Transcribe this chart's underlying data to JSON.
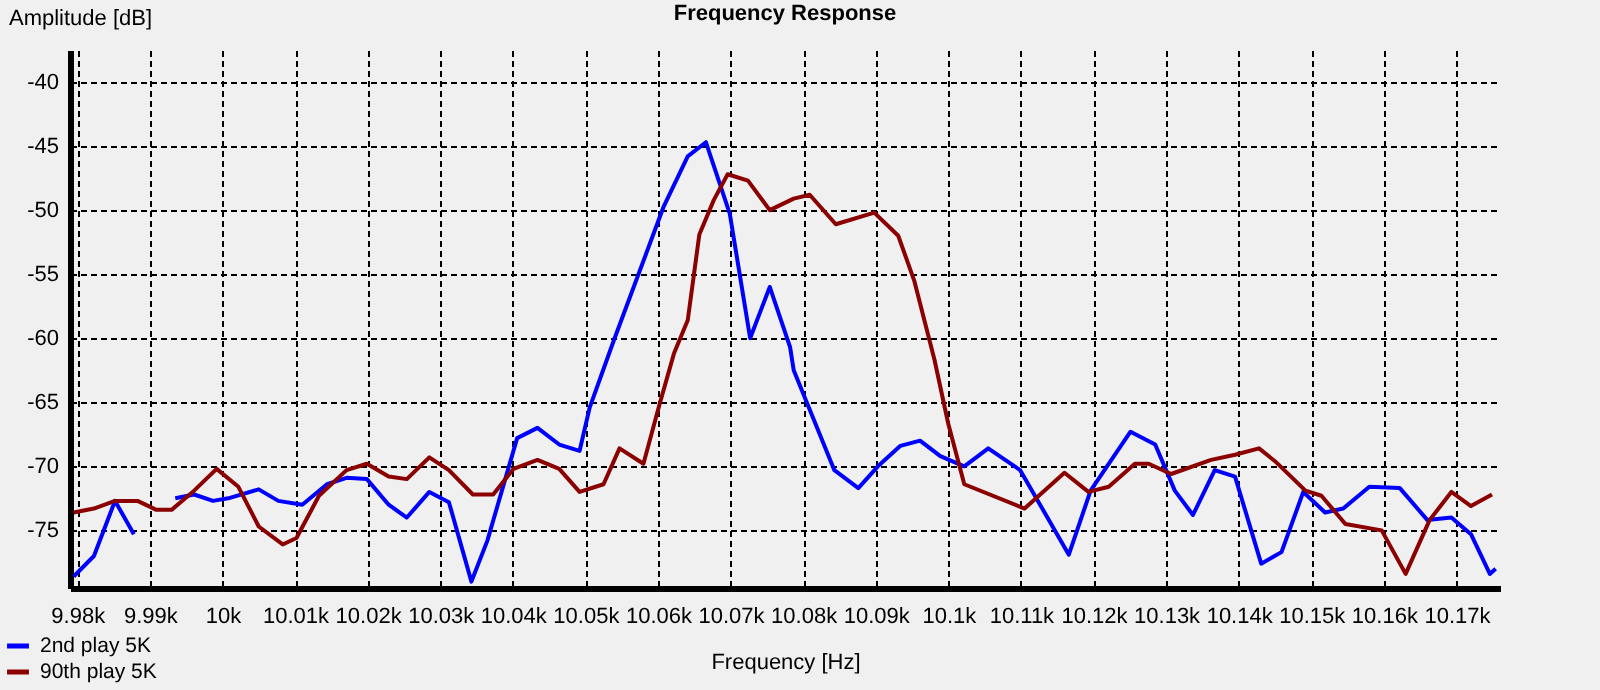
{
  "chart_data": {
    "type": "line",
    "title": "Frequency Response",
    "xlabel": "Frequency [Hz]",
    "ylabel": "Amplitude [dB]",
    "xlim": [
      9979,
      10176
    ],
    "ylim": [
      -79.5,
      -37.5
    ],
    "xticks": [
      {
        "value": 9980,
        "label": "9.98k"
      },
      {
        "value": 9990,
        "label": "9.99k"
      },
      {
        "value": 10000,
        "label": "10k"
      },
      {
        "value": 10010,
        "label": "10.01k"
      },
      {
        "value": 10020,
        "label": "10.02k"
      },
      {
        "value": 10030,
        "label": "10.03k"
      },
      {
        "value": 10040,
        "label": "10.04k"
      },
      {
        "value": 10050,
        "label": "10.05k"
      },
      {
        "value": 10060,
        "label": "10.06k"
      },
      {
        "value": 10070,
        "label": "10.07k"
      },
      {
        "value": 10080,
        "label": "10.08k"
      },
      {
        "value": 10090,
        "label": "10.09k"
      },
      {
        "value": 10100,
        "label": "10.1k"
      },
      {
        "value": 10110,
        "label": "10.11k"
      },
      {
        "value": 10120,
        "label": "10.12k"
      },
      {
        "value": 10130,
        "label": "10.13k"
      },
      {
        "value": 10140,
        "label": "10.14k"
      },
      {
        "value": 10150,
        "label": "10.15k"
      },
      {
        "value": 10160,
        "label": "10.16k"
      },
      {
        "value": 10170,
        "label": "10.17k"
      }
    ],
    "yticks": [
      -40,
      -45,
      -50,
      -55,
      -60,
      -65,
      -70,
      -75
    ],
    "grid": true,
    "legend": "bottom left",
    "line_style": "solid",
    "series": [
      {
        "name": "2nd play 5K",
        "color": "#0000ff",
        "x": [
          9979.5,
          9982.3,
          9985.2,
          9987.8,
          9990.1,
          9991.4,
          9993.5,
          9996.1,
          9998.7,
          10000.8,
          10005,
          10007.7,
          10011,
          10014.4,
          10017.1,
          10019.9,
          10022.9,
          10025.4,
          10028.5,
          10031.2,
          10034.3,
          10036.5,
          10040.6,
          10043.4,
          10046.4,
          10049.2,
          10050.6,
          10053.9,
          10060.8,
          10064.1,
          10066.6,
          10069.9,
          10072.7,
          10075.4,
          10078.2,
          10078.7,
          10084.3,
          10087.6,
          10090.3,
          10093.4,
          10096.1,
          10098.9,
          10102.2,
          10105.5,
          10109.9,
          10116.6,
          10119.6,
          10125.1,
          10128.5,
          10131.2,
          10133.7,
          10136.7,
          10139.5,
          10143.1,
          10145.9,
          10148.9,
          10151.9,
          10154.4,
          10158,
          10162.2,
          10166,
          10169.3,
          10172,
          10174.6,
          10175.4
        ],
        "values": [
          -78.6,
          -77,
          -72.7,
          -75.3,
          null,
          null,
          -72.5,
          -72.2,
          -72.7,
          -72.5,
          -71.8,
          -72.7,
          -73,
          -71.4,
          -70.9,
          -71,
          -73,
          -74,
          -72,
          -72.8,
          -79,
          -75.8,
          -67.8,
          -67,
          -68.3,
          -68.8,
          -65.4,
          -60.2,
          -49.7,
          -45.8,
          -44.7,
          -50.3,
          -60,
          -56,
          -60.7,
          -62.5,
          -70.3,
          -71.7,
          -70,
          -68.4,
          -68,
          -69.2,
          -70,
          -68.6,
          -70.3,
          -76.9,
          -71.9,
          -67.3,
          -68.3,
          -71.9,
          -73.8,
          -70.3,
          -70.8,
          -77.6,
          -76.7,
          -72,
          -73.6,
          -73.3,
          -71.6,
          -71.7,
          -74.2,
          -74,
          -75.3,
          -78.4,
          -78
        ]
      },
      {
        "name": "90th play 5K",
        "color": "#8b0000",
        "x": [
          9979.5,
          9982.3,
          9985.2,
          9988.3,
          9990.9,
          9993,
          9996.1,
          9999.2,
          10002.2,
          10005,
          10008.3,
          10010.2,
          10013.3,
          10017.1,
          10019.9,
          10022.9,
          10025.4,
          10028.5,
          10031.2,
          10034.5,
          10037.3,
          10040.1,
          10043.4,
          10046.4,
          10049.2,
          10052.5,
          10054.7,
          10058,
          10060.2,
          10062.2,
          10064.1,
          10065.7,
          10067.7,
          10069.6,
          10072.4,
          10075.4,
          10078.7,
          10080.9,
          10084.5,
          10089.8,
          10093.1,
          10095.3,
          10098.1,
          10100,
          10102.2,
          10110.5,
          10116,
          10119.3,
          10122.1,
          10125.7,
          10127.6,
          10130.7,
          10136.2,
          10139.5,
          10142.8,
          10145,
          10149.2,
          10151.4,
          10154.7,
          10159.7,
          10163,
          10166.3,
          10169.3,
          10172,
          10174.9
        ],
        "values": [
          -73.6,
          -73.3,
          -72.7,
          -72.7,
          -73.4,
          -73.4,
          -71.9,
          -70.2,
          -71.6,
          -74.7,
          -76.1,
          -75.6,
          -72.3,
          -70.3,
          -69.8,
          -70.8,
          -71,
          -69.3,
          -70.3,
          -72.2,
          -72.2,
          -70.2,
          -69.5,
          -70.2,
          -72,
          -71.4,
          -68.6,
          -69.8,
          -65.2,
          -61.2,
          -58.6,
          -51.9,
          -49.2,
          -47.2,
          -47.7,
          -50,
          -49.1,
          -48.8,
          -51.1,
          -50.2,
          -52,
          -55.5,
          -61.7,
          -66.7,
          -71.4,
          -73.3,
          -70.5,
          -72,
          -71.6,
          -69.8,
          -69.8,
          -70.6,
          -69.5,
          -69.1,
          -68.6,
          -69.6,
          -71.9,
          -72.3,
          -74.5,
          -75,
          -78.4,
          -74.2,
          -72,
          -73.1,
          -72.2
        ]
      }
    ]
  }
}
